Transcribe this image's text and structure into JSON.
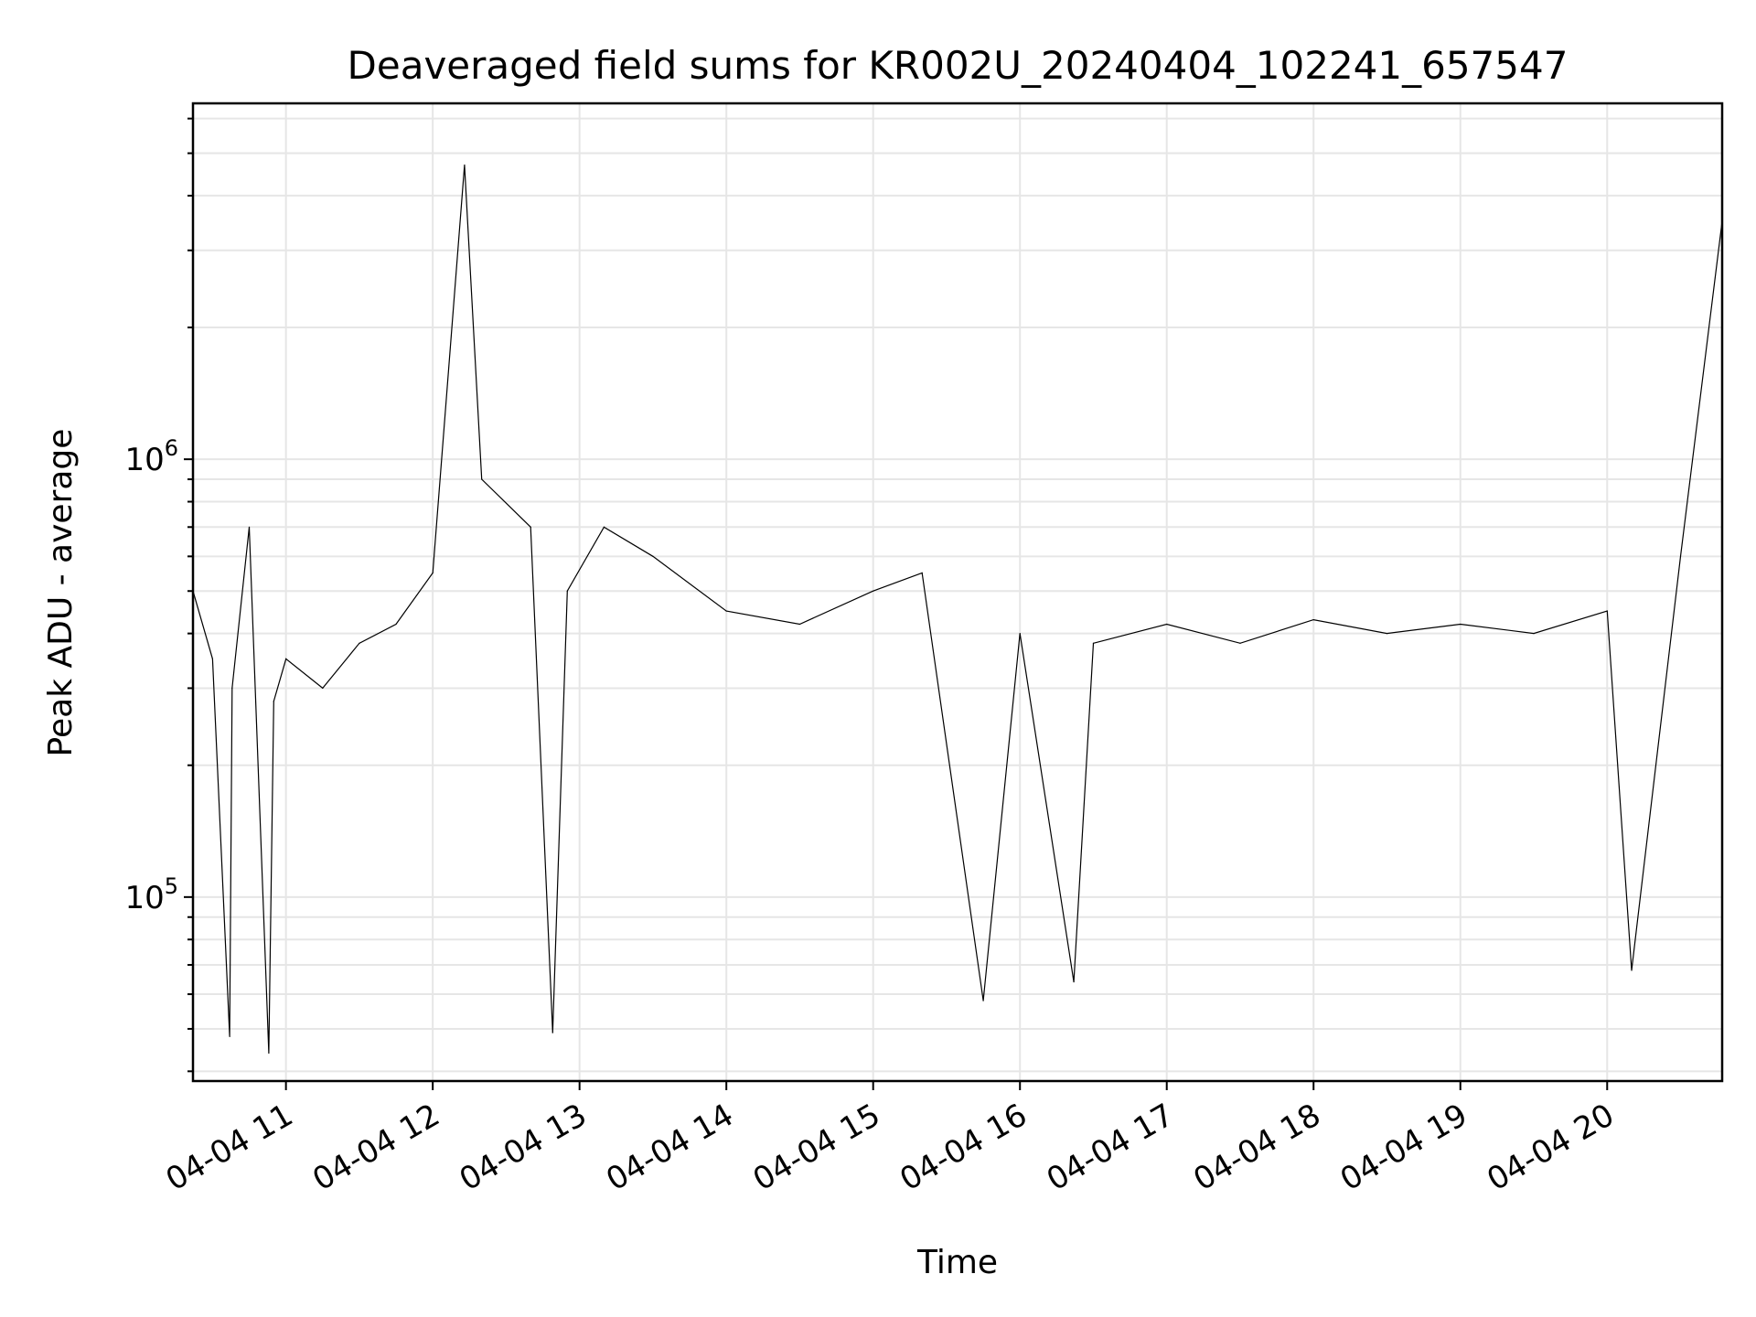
{
  "chart_data": {
    "type": "line",
    "title": "Deaveraged field sums for KR002U_20240404_102241_657547",
    "xlabel": "Time",
    "ylabel": "Peak ADU - average",
    "yscale": "log",
    "grid": true,
    "line_color": "#000000",
    "grid_color": "#e6e6e6",
    "xlim": [
      "2024-04-04 10:22",
      "2024-04-04 20:47"
    ],
    "ylim": [
      38000,
      6500000
    ],
    "x_ticks": [
      {
        "value": "2024-04-04 11:00",
        "label": "04-04 11"
      },
      {
        "value": "2024-04-04 12:00",
        "label": "04-04 12"
      },
      {
        "value": "2024-04-04 13:00",
        "label": "04-04 13"
      },
      {
        "value": "2024-04-04 14:00",
        "label": "04-04 14"
      },
      {
        "value": "2024-04-04 15:00",
        "label": "04-04 15"
      },
      {
        "value": "2024-04-04 16:00",
        "label": "04-04 16"
      },
      {
        "value": "2024-04-04 17:00",
        "label": "04-04 17"
      },
      {
        "value": "2024-04-04 18:00",
        "label": "04-04 18"
      },
      {
        "value": "2024-04-04 19:00",
        "label": "04-04 19"
      },
      {
        "value": "2024-04-04 20:00",
        "label": "04-04 20"
      }
    ],
    "y_ticks": [
      {
        "value": 100000,
        "base": "10",
        "exp": "5"
      },
      {
        "value": 1000000,
        "base": "10",
        "exp": "6"
      }
    ],
    "series": [
      {
        "values": [
          [
            "2024-04-04 10:22",
            500000
          ],
          [
            "2024-04-04 10:30",
            350000
          ],
          [
            "2024-04-04 10:37",
            48000
          ],
          [
            "2024-04-04 10:38",
            300000
          ],
          [
            "2024-04-04 10:45",
            700000
          ],
          [
            "2024-04-04 10:53",
            44000
          ],
          [
            "2024-04-04 10:55",
            280000
          ],
          [
            "2024-04-04 11:00",
            350000
          ],
          [
            "2024-04-04 11:15",
            300000
          ],
          [
            "2024-04-04 11:30",
            380000
          ],
          [
            "2024-04-04 11:45",
            420000
          ],
          [
            "2024-04-04 12:00",
            550000
          ],
          [
            "2024-04-04 12:13",
            4700000
          ],
          [
            "2024-04-04 12:20",
            900000
          ],
          [
            "2024-04-04 12:40",
            700000
          ],
          [
            "2024-04-04 12:49",
            49000
          ],
          [
            "2024-04-04 12:55",
            500000
          ],
          [
            "2024-04-04 13:10",
            700000
          ],
          [
            "2024-04-04 13:30",
            600000
          ],
          [
            "2024-04-04 14:00",
            450000
          ],
          [
            "2024-04-04 14:30",
            420000
          ],
          [
            "2024-04-04 15:00",
            500000
          ],
          [
            "2024-04-04 15:20",
            550000
          ],
          [
            "2024-04-04 15:45",
            58000
          ],
          [
            "2024-04-04 16:00",
            400000
          ],
          [
            "2024-04-04 16:22",
            64000
          ],
          [
            "2024-04-04 16:30",
            380000
          ],
          [
            "2024-04-04 17:00",
            420000
          ],
          [
            "2024-04-04 17:30",
            380000
          ],
          [
            "2024-04-04 18:00",
            430000
          ],
          [
            "2024-04-04 18:30",
            400000
          ],
          [
            "2024-04-04 19:00",
            420000
          ],
          [
            "2024-04-04 19:30",
            400000
          ],
          [
            "2024-04-04 20:00",
            450000
          ],
          [
            "2024-04-04 20:10",
            68000
          ],
          [
            "2024-04-04 20:30",
            600000
          ],
          [
            "2024-04-04 20:47",
            3500000
          ]
        ]
      }
    ]
  }
}
